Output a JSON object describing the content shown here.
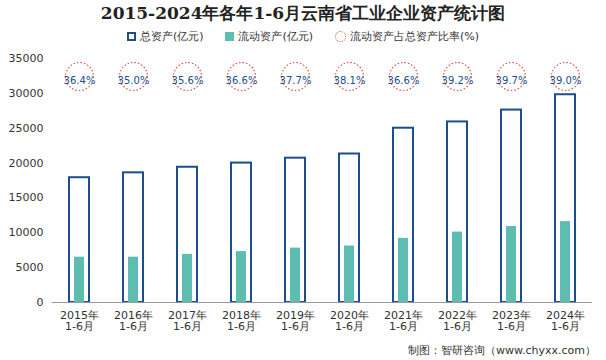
{
  "chart_data": {
    "type": "bar",
    "title": "2015-2024年各年1-6月云南省工业企业资产统计图",
    "caption": "制图：智研咨询（www.chyxx.com）",
    "categories": [
      "2015年\n1-6月",
      "2016年\n1-6月",
      "2017年\n1-6月",
      "2018年\n1-6月",
      "2019年\n1-6月",
      "2020年\n1-6月",
      "2021年\n1-6月",
      "2022年\n1-6月",
      "2023年\n1-6月",
      "2024年\n1-6月"
    ],
    "series": [
      {
        "name": "总资产(亿元)",
        "type": "bar",
        "color": "#1a4f8a",
        "values": [
          17900,
          18600,
          19400,
          20000,
          20700,
          21300,
          25000,
          25900,
          27600,
          29800
        ]
      },
      {
        "name": "流动资产(亿元)",
        "type": "bar",
        "color": "#5dbdb0",
        "values": [
          6500,
          6500,
          6900,
          7300,
          7800,
          8100,
          9200,
          10100,
          10900,
          11600
        ]
      },
      {
        "name": "流动资产占总资产比率(%)",
        "type": "scatter",
        "color": "#d9534f",
        "marker": "circle",
        "line_style": "dotted",
        "values": [
          36.4,
          35.0,
          35.6,
          36.6,
          37.7,
          38.1,
          36.6,
          39.2,
          39.7,
          39.0
        ],
        "value_labels": [
          "36.4%",
          "35.0%",
          "35.6%",
          "36.6%",
          "37.7%",
          "38.1%",
          "36.6%",
          "39.2%",
          "39.7%",
          "39.0%"
        ]
      }
    ],
    "ylim": [
      0,
      35000
    ],
    "yticks": [
      0,
      5000,
      10000,
      15000,
      20000,
      25000,
      30000,
      35000
    ],
    "grid": false,
    "legend": "top"
  }
}
